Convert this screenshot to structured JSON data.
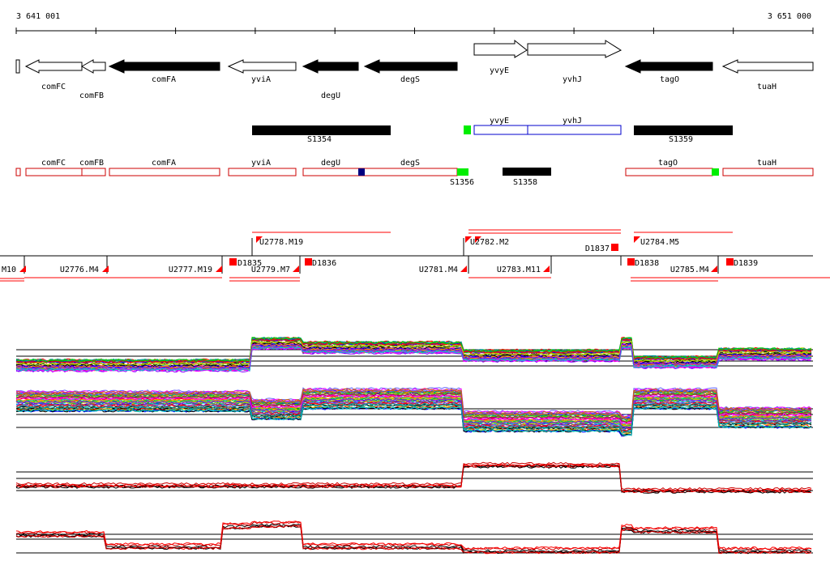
{
  "coords": {
    "start": "3 641 001",
    "end": "3 651 000"
  },
  "genes_top": [
    {
      "name": "comFC",
      "dir": "left",
      "filled": false
    },
    {
      "name": "comFB",
      "dir": "left",
      "filled": false
    },
    {
      "name": "comFA",
      "dir": "left",
      "filled": true
    },
    {
      "name": "yviA",
      "dir": "left",
      "filled": false
    },
    {
      "name": "degU",
      "dir": "left",
      "filled": true
    },
    {
      "name": "degS",
      "dir": "left",
      "filled": true
    },
    {
      "name": "yvyE",
      "dir": "right",
      "filled": false
    },
    {
      "name": "yvhJ",
      "dir": "right",
      "filled": false
    },
    {
      "name": "tagO",
      "dir": "left",
      "filled": true
    },
    {
      "name": "tuaH",
      "dir": "left",
      "filled": false
    }
  ],
  "s_blocks": [
    {
      "name": "S1354"
    },
    {
      "name": "S1359"
    },
    {
      "name": "S1356"
    },
    {
      "name": "S1358"
    }
  ],
  "operon_blue": [
    {
      "name": "yvyE"
    },
    {
      "name": "yvhJ"
    }
  ],
  "operon_red": [
    {
      "name": "comFC"
    },
    {
      "name": "comFB"
    },
    {
      "name": "comFA"
    },
    {
      "name": "yviA"
    },
    {
      "name": "degU"
    },
    {
      "name": "degS"
    },
    {
      "name": "tagO"
    },
    {
      "name": "tuaH"
    }
  ],
  "segments_upper": [
    {
      "name": "U2778.M19"
    },
    {
      "name": "U2782.M2"
    },
    {
      "name": "U2784.M5"
    },
    {
      "name": "D1837"
    }
  ],
  "segments_lower": [
    {
      "name": "M10"
    },
    {
      "name": "U2776.M4"
    },
    {
      "name": "U2777.M19"
    },
    {
      "name": "D1835"
    },
    {
      "name": "U2779.M7"
    },
    {
      "name": "D1836"
    },
    {
      "name": "U2781.M4"
    },
    {
      "name": "U2783.M11"
    },
    {
      "name": "D1838"
    },
    {
      "name": "U2785.M4"
    },
    {
      "name": "D1839"
    }
  ],
  "colors": {
    "gene_fill": "#000000",
    "operon": "#cc0000",
    "operon_blue": "#0000cc",
    "marker_green": "#00ee00",
    "marker_navy": "#000080",
    "segment_red": "#ff0000"
  }
}
